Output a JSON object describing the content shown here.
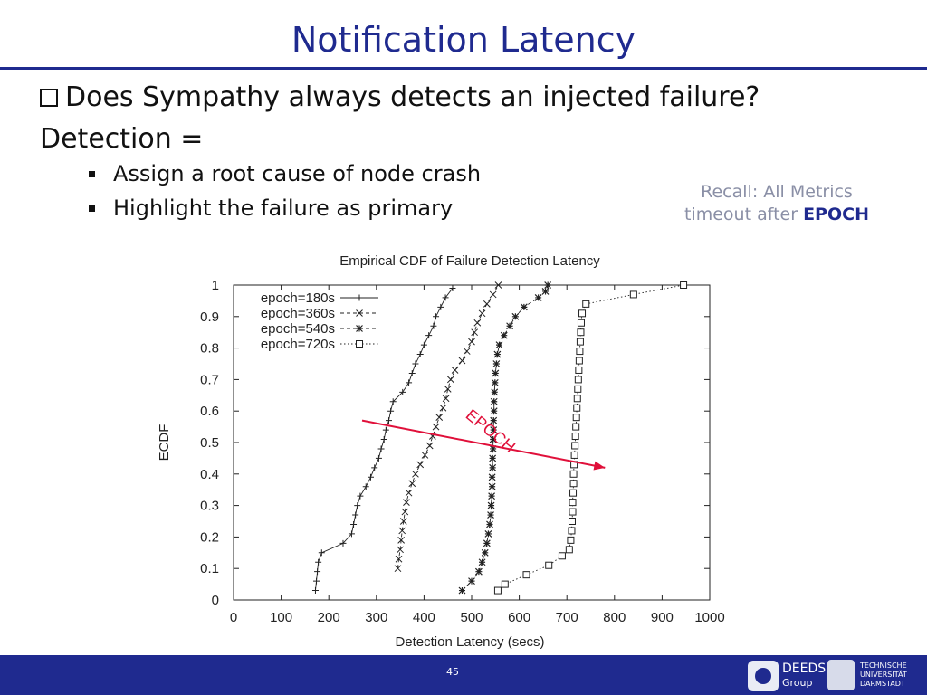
{
  "slide": {
    "title": "Notification Latency",
    "question": "Does Sympathy always detects an injected failure?",
    "detection_label": "Detection =",
    "sub_bullets": [
      "Assign a root cause of node crash",
      "Highlight the failure as primary"
    ],
    "recall_line1": "Recall: All Metrics",
    "recall_line2_prefix": "timeout after ",
    "recall_line2_bold": "EPOCH",
    "page_number": "45",
    "deeds_logo_word": "DEEDS",
    "deeds_logo_sub": "Group",
    "tud_logo_lines": [
      "TECHNISCHE",
      "UNIVERSITÄT",
      "DARMSTADT"
    ]
  },
  "colors": {
    "title": "#1f2a8f",
    "footer": "#1f2a8f",
    "arrow": "#e0103a",
    "recall": "#8a8fa6"
  },
  "chart_data": {
    "type": "line",
    "title": "Empirical CDF of Failure Detection Latency",
    "xlabel": "Detection Latency (secs)",
    "ylabel": "ECDF",
    "xlim": [
      0,
      1000
    ],
    "ylim": [
      0,
      1
    ],
    "x_ticks": [
      "0",
      "100",
      "200",
      "300",
      "400",
      "500",
      "600",
      "700",
      "800",
      "900",
      "1000"
    ],
    "y_ticks": [
      "0",
      "0.1",
      "0.2",
      "0.3",
      "0.4",
      "0.5",
      "0.6",
      "0.7",
      "0.8",
      "0.9",
      "1"
    ],
    "legend_position": "top-left",
    "annotation": {
      "text": "EPOCH",
      "from": [
        270,
        0.57
      ],
      "to": [
        780,
        0.42
      ]
    },
    "series": [
      {
        "name": "epoch=180s",
        "marker": "plus",
        "dash": "solid",
        "points": [
          [
            172,
            0.03
          ],
          [
            174,
            0.06
          ],
          [
            176,
            0.09
          ],
          [
            178,
            0.12
          ],
          [
            185,
            0.15
          ],
          [
            230,
            0.18
          ],
          [
            248,
            0.21
          ],
          [
            252,
            0.24
          ],
          [
            256,
            0.27
          ],
          [
            260,
            0.3
          ],
          [
            266,
            0.33
          ],
          [
            278,
            0.36
          ],
          [
            288,
            0.39
          ],
          [
            296,
            0.42
          ],
          [
            305,
            0.45
          ],
          [
            310,
            0.48
          ],
          [
            316,
            0.51
          ],
          [
            320,
            0.54
          ],
          [
            326,
            0.57
          ],
          [
            330,
            0.6
          ],
          [
            335,
            0.63
          ],
          [
            355,
            0.66
          ],
          [
            368,
            0.69
          ],
          [
            375,
            0.72
          ],
          [
            382,
            0.75
          ],
          [
            392,
            0.78
          ],
          [
            400,
            0.81
          ],
          [
            410,
            0.84
          ],
          [
            420,
            0.87
          ],
          [
            425,
            0.9
          ],
          [
            435,
            0.93
          ],
          [
            445,
            0.96
          ],
          [
            460,
            0.99
          ]
        ]
      },
      {
        "name": "epoch=360s",
        "marker": "cross",
        "dash": "dashed",
        "points": [
          [
            345,
            0.1
          ],
          [
            347,
            0.13
          ],
          [
            350,
            0.16
          ],
          [
            352,
            0.19
          ],
          [
            354,
            0.22
          ],
          [
            357,
            0.25
          ],
          [
            360,
            0.28
          ],
          [
            363,
            0.31
          ],
          [
            368,
            0.34
          ],
          [
            375,
            0.37
          ],
          [
            382,
            0.4
          ],
          [
            392,
            0.43
          ],
          [
            402,
            0.46
          ],
          [
            412,
            0.49
          ],
          [
            418,
            0.52
          ],
          [
            425,
            0.55
          ],
          [
            432,
            0.58
          ],
          [
            440,
            0.61
          ],
          [
            446,
            0.64
          ],
          [
            450,
            0.67
          ],
          [
            456,
            0.7
          ],
          [
            465,
            0.73
          ],
          [
            480,
            0.76
          ],
          [
            490,
            0.79
          ],
          [
            500,
            0.82
          ],
          [
            506,
            0.85
          ],
          [
            512,
            0.88
          ],
          [
            522,
            0.91
          ],
          [
            532,
            0.94
          ],
          [
            545,
            0.97
          ],
          [
            556,
            1.0
          ]
        ]
      },
      {
        "name": "epoch=540s",
        "marker": "star",
        "dash": "dashed",
        "points": [
          [
            480,
            0.03
          ],
          [
            500,
            0.06
          ],
          [
            515,
            0.09
          ],
          [
            522,
            0.12
          ],
          [
            528,
            0.15
          ],
          [
            532,
            0.18
          ],
          [
            535,
            0.21
          ],
          [
            538,
            0.24
          ],
          [
            540,
            0.27
          ],
          [
            541,
            0.3
          ],
          [
            542,
            0.33
          ],
          [
            543,
            0.36
          ],
          [
            543,
            0.39
          ],
          [
            544,
            0.42
          ],
          [
            544,
            0.45
          ],
          [
            545,
            0.48
          ],
          [
            545,
            0.51
          ],
          [
            546,
            0.54
          ],
          [
            546,
            0.57
          ],
          [
            547,
            0.6
          ],
          [
            547,
            0.63
          ],
          [
            548,
            0.66
          ],
          [
            549,
            0.69
          ],
          [
            550,
            0.72
          ],
          [
            552,
            0.75
          ],
          [
            554,
            0.78
          ],
          [
            558,
            0.81
          ],
          [
            568,
            0.84
          ],
          [
            580,
            0.87
          ],
          [
            592,
            0.9
          ],
          [
            610,
            0.93
          ],
          [
            640,
            0.96
          ],
          [
            655,
            0.98
          ],
          [
            660,
            1.0
          ]
        ]
      },
      {
        "name": "epoch=720s",
        "marker": "square",
        "dash": "dotted",
        "points": [
          [
            555,
            0.03
          ],
          [
            570,
            0.05
          ],
          [
            615,
            0.08
          ],
          [
            662,
            0.11
          ],
          [
            690,
            0.14
          ],
          [
            705,
            0.16
          ],
          [
            708,
            0.19
          ],
          [
            710,
            0.22
          ],
          [
            711,
            0.25
          ],
          [
            712,
            0.28
          ],
          [
            712,
            0.31
          ],
          [
            713,
            0.34
          ],
          [
            714,
            0.37
          ],
          [
            714,
            0.4
          ],
          [
            715,
            0.43
          ],
          [
            716,
            0.46
          ],
          [
            717,
            0.49
          ],
          [
            718,
            0.52
          ],
          [
            719,
            0.55
          ],
          [
            720,
            0.58
          ],
          [
            721,
            0.61
          ],
          [
            722,
            0.64
          ],
          [
            723,
            0.67
          ],
          [
            724,
            0.7
          ],
          [
            725,
            0.73
          ],
          [
            726,
            0.76
          ],
          [
            727,
            0.79
          ],
          [
            728,
            0.82
          ],
          [
            729,
            0.85
          ],
          [
            730,
            0.88
          ],
          [
            732,
            0.91
          ],
          [
            740,
            0.94
          ],
          [
            840,
            0.97
          ],
          [
            945,
            1.0
          ]
        ]
      }
    ]
  }
}
